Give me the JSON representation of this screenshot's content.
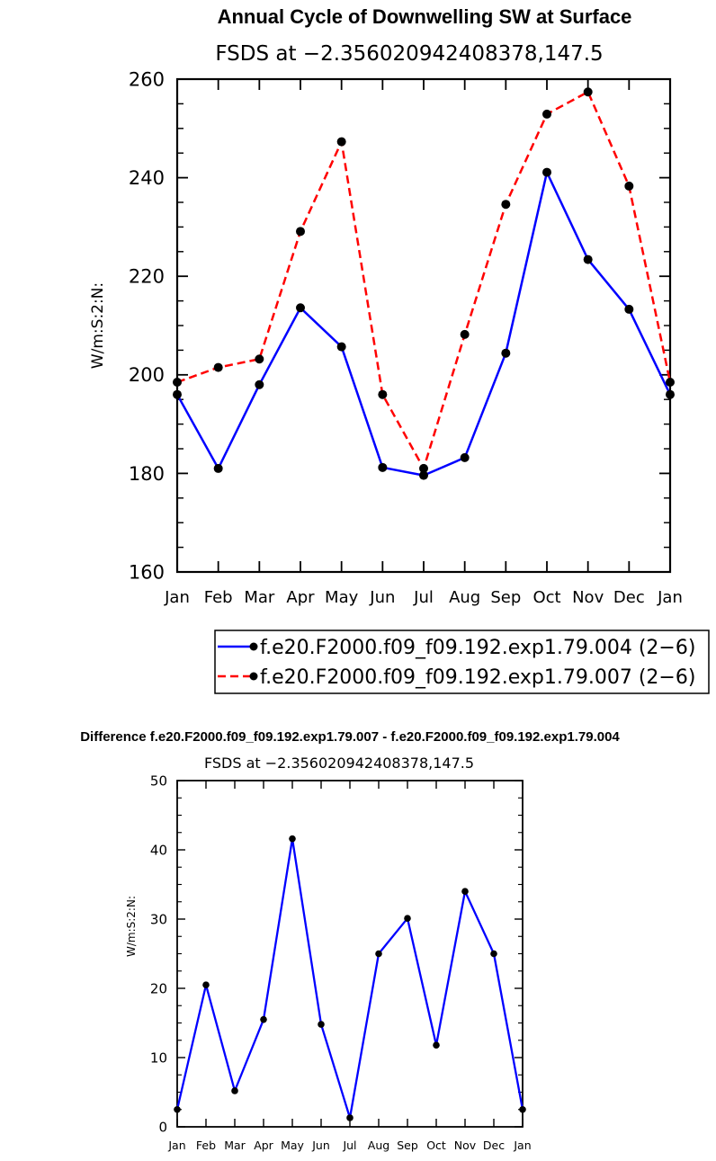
{
  "chart_data": [
    {
      "type": "line",
      "title": "Annual Cycle of Downwelling SW at Surface",
      "subtitle": "FSDS at −2.356020942408378,147.5",
      "xlabel": "",
      "ylabel": "W/m:S:2:N:",
      "categories": [
        "Jan",
        "Feb",
        "Mar",
        "Apr",
        "May",
        "Jun",
        "Jul",
        "Aug",
        "Sep",
        "Oct",
        "Nov",
        "Dec",
        "Jan"
      ],
      "ylim": [
        160,
        260
      ],
      "yticks": [
        "160",
        "180",
        "200",
        "220",
        "240",
        "260"
      ],
      "legend_position": "bottom",
      "series": [
        {
          "name": "f.e20.F2000.f09_f09.192.exp1.79.004 (2−6)",
          "color": "#0000ff",
          "dash": "solid",
          "values": [
            196.0,
            181.0,
            198.0,
            213.6,
            205.7,
            181.2,
            179.6,
            183.2,
            204.4,
            241.1,
            223.4,
            213.3,
            196.0
          ]
        },
        {
          "name": "f.e20.F2000.f09_f09.192.exp1.79.007 (2−6)",
          "color": "#ff0000",
          "dash": "dashed",
          "values": [
            198.5,
            201.5,
            203.2,
            229.1,
            247.3,
            196.0,
            181.0,
            208.2,
            234.6,
            252.9,
            257.4,
            238.3,
            198.5
          ]
        }
      ]
    },
    {
      "type": "line",
      "title": "Difference f.e20.F2000.f09_f09.192.exp1.79.007 - f.e20.F2000.f09_f09.192.exp1.79.004",
      "subtitle": "FSDS at −2.356020942408378,147.5",
      "xlabel": "",
      "ylabel": "W/m:S:2:N:",
      "categories": [
        "Jan",
        "Feb",
        "Mar",
        "Apr",
        "May",
        "Jun",
        "Jul",
        "Aug",
        "Sep",
        "Oct",
        "Nov",
        "Dec",
        "Jan"
      ],
      "ylim": [
        0,
        50
      ],
      "yticks": [
        "0",
        "10",
        "20",
        "30",
        "40",
        "50"
      ],
      "series": [
        {
          "color": "#0000ff",
          "dash": "solid",
          "values": [
            2.5,
            20.5,
            5.2,
            15.5,
            41.6,
            14.8,
            1.3,
            25.0,
            30.1,
            11.8,
            34.0,
            25.0,
            2.5
          ]
        }
      ]
    }
  ]
}
